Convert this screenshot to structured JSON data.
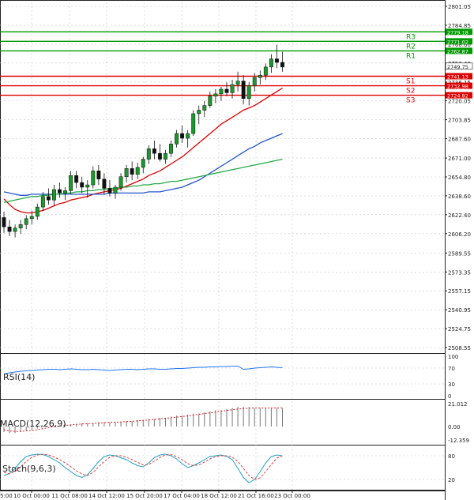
{
  "chart_data": [
    {
      "type": "candlestick",
      "panel": "price",
      "x_tick_labels": [
        "10 Oct 00:00",
        "11 Oct 08:00",
        "14 Oct 12:00",
        "15 Oct 20:00",
        "17 Oct 04:00",
        "18 Oct 12:00",
        "21 Oct 16:00",
        "23 Oct 00:00"
      ],
      "x_tick_labels_partial": [
        "5:00"
      ],
      "y_tick_labels": [
        "2801.05",
        "2784.85",
        "2768.60",
        "2752.40",
        "2736.15",
        "2720.05",
        "2703.85",
        "2687.60",
        "2671.00",
        "2654.80",
        "2638.60",
        "2622.40",
        "2606.20",
        "2589.55",
        "2573.35",
        "2557.15",
        "2540.95",
        "2524.75",
        "2508.55"
      ],
      "ylim": [
        2508.55,
        2801.05
      ],
      "levels": [
        {
          "name": "R3",
          "value": 2779.18,
          "color": "#009900"
        },
        {
          "name": "R2",
          "value": 2771.02,
          "color": "#009900"
        },
        {
          "name": "R1",
          "value": 2762.87,
          "color": "#009900"
        },
        {
          "name": "S1",
          "value": 2741.13,
          "color": "#dd0000"
        },
        {
          "name": "S2",
          "value": 2732.98,
          "color": "#dd0000"
        },
        {
          "name": "S3",
          "value": 2724.82,
          "color": "#dd0000"
        }
      ],
      "level_labels": [
        "2779.18",
        "2771.02",
        "2762.87",
        "2741.13",
        "2732.98",
        "2724.82"
      ],
      "current_price": "2749.75",
      "candles": [
        [
          2620,
          2625,
          2607,
          2612
        ],
        [
          2612,
          2618,
          2604,
          2608
        ],
        [
          2608,
          2614,
          2603,
          2611
        ],
        [
          2611,
          2618,
          2606,
          2614
        ],
        [
          2614,
          2622,
          2610,
          2619
        ],
        [
          2619,
          2626,
          2614,
          2621
        ],
        [
          2621,
          2632,
          2618,
          2629
        ],
        [
          2629,
          2642,
          2626,
          2638
        ],
        [
          2638,
          2645,
          2631,
          2635
        ],
        [
          2635,
          2648,
          2630,
          2644
        ],
        [
          2644,
          2650,
          2637,
          2641
        ],
        [
          2641,
          2646,
          2635,
          2643
        ],
        [
          2643,
          2660,
          2640,
          2656
        ],
        [
          2656,
          2660,
          2645,
          2650
        ],
        [
          2650,
          2655,
          2641,
          2646
        ],
        [
          2646,
          2652,
          2637,
          2648
        ],
        [
          2648,
          2664,
          2645,
          2660
        ],
        [
          2660,
          2665,
          2648,
          2653
        ],
        [
          2653,
          2658,
          2640,
          2645
        ],
        [
          2645,
          2652,
          2638,
          2641
        ],
        [
          2641,
          2648,
          2636,
          2646
        ],
        [
          2646,
          2658,
          2643,
          2655
        ],
        [
          2655,
          2665,
          2650,
          2662
        ],
        [
          2662,
          2668,
          2652,
          2657
        ],
        [
          2657,
          2667,
          2653,
          2663
        ],
        [
          2663,
          2672,
          2658,
          2670
        ],
        [
          2670,
          2682,
          2666,
          2679
        ],
        [
          2679,
          2686,
          2670,
          2675
        ],
        [
          2675,
          2683,
          2668,
          2670
        ],
        [
          2670,
          2678,
          2666,
          2675
        ],
        [
          2675,
          2686,
          2672,
          2683
        ],
        [
          2683,
          2695,
          2680,
          2692
        ],
        [
          2692,
          2699,
          2684,
          2688
        ],
        [
          2688,
          2695,
          2680,
          2692
        ],
        [
          2692,
          2712,
          2690,
          2709
        ],
        [
          2709,
          2716,
          2700,
          2712
        ],
        [
          2712,
          2720,
          2706,
          2716
        ],
        [
          2716,
          2728,
          2714,
          2724
        ],
        [
          2724,
          2730,
          2718,
          2726
        ],
        [
          2726,
          2732,
          2720,
          2730
        ],
        [
          2730,
          2736,
          2724,
          2727
        ],
        [
          2727,
          2738,
          2722,
          2734
        ],
        [
          2734,
          2745,
          2728,
          2737
        ],
        [
          2737,
          2742,
          2717,
          2722
        ],
        [
          2722,
          2736,
          2716,
          2733
        ],
        [
          2733,
          2744,
          2728,
          2740
        ],
        [
          2740,
          2746,
          2734,
          2742
        ],
        [
          2742,
          2752,
          2738,
          2749
        ],
        [
          2749,
          2760,
          2744,
          2756
        ],
        [
          2756,
          2768,
          2748,
          2753
        ],
        [
          2753,
          2762,
          2745,
          2749
        ]
      ],
      "moving_averages": [
        {
          "color": "#e00000",
          "values": [
            2636,
            2631,
            2627,
            2625,
            2624,
            2624,
            2625,
            2626,
            2628,
            2630,
            2632,
            2633,
            2635,
            2636,
            2637,
            2638,
            2640,
            2641,
            2642,
            2643,
            2644,
            2645,
            2647,
            2649,
            2651,
            2653,
            2656,
            2658,
            2660,
            2663,
            2666,
            2669,
            2672,
            2676,
            2680,
            2684,
            2688,
            2692,
            2696,
            2700,
            2703,
            2706,
            2709,
            2712,
            2714,
            2716,
            2719,
            2722,
            2725,
            2728,
            2731
          ]
        },
        {
          "color": "#2255cc",
          "values": [
            2642,
            2641,
            2640,
            2639,
            2639,
            2640,
            2640,
            2640,
            2640,
            2640,
            2640,
            2640,
            2640,
            2640,
            2640,
            2640,
            2640,
            2640,
            2640,
            2641,
            2641,
            2641,
            2641,
            2641,
            2641,
            2641,
            2642,
            2642,
            2642,
            2643,
            2644,
            2645,
            2646,
            2648,
            2650,
            2652,
            2655,
            2658,
            2661,
            2664,
            2667,
            2670,
            2673,
            2676,
            2679,
            2681,
            2684,
            2686,
            2688,
            2690,
            2692
          ]
        },
        {
          "color": "#22aa44",
          "values": [
            2633,
            2634,
            2635,
            2636,
            2637,
            2638,
            2638,
            2639,
            2639,
            2640,
            2640,
            2641,
            2641,
            2642,
            2642,
            2643,
            2643,
            2644,
            2644,
            2645,
            2645,
            2646,
            2646,
            2647,
            2647,
            2648,
            2648,
            2649,
            2649,
            2650,
            2651,
            2651,
            2652,
            2653,
            2654,
            2655,
            2656,
            2657,
            2658,
            2659,
            2660,
            2661,
            2662,
            2663,
            2664,
            2665,
            2666,
            2667,
            2668,
            2669,
            2670
          ]
        }
      ]
    },
    {
      "type": "line",
      "panel": "rsi",
      "title": "RSI(14)",
      "y_tick_labels": [
        "100",
        "70",
        "30",
        "0"
      ],
      "ylim": [
        0,
        100
      ],
      "series": [
        {
          "color": "#1f77ff",
          "values": [
            55,
            58,
            60,
            62,
            63,
            64,
            65,
            66,
            67,
            67,
            66,
            67,
            68,
            67,
            66,
            66,
            67,
            66,
            65,
            64,
            65,
            66,
            67,
            67,
            66,
            67,
            68,
            68,
            67,
            67,
            68,
            69,
            69,
            70,
            71,
            72,
            72,
            73,
            73,
            74,
            74,
            75,
            75,
            67,
            68,
            70,
            71,
            72,
            73,
            72,
            71
          ]
        }
      ]
    },
    {
      "type": "bar",
      "panel": "macd",
      "title": "MACD(12,26,9)",
      "y_tick_labels": [
        "21.012",
        "0.00",
        "-12.359"
      ],
      "ylim": [
        -12.359,
        21.012
      ],
      "histogram": [
        -5,
        -6,
        -6,
        -5,
        -4,
        -3,
        -2,
        -1,
        0,
        1,
        1,
        2,
        2,
        2,
        3,
        3,
        3,
        4,
        4,
        4,
        4,
        4,
        5,
        5,
        6,
        6,
        7,
        7,
        8,
        8,
        9,
        10,
        10,
        11,
        12,
        12,
        13,
        14,
        15,
        15,
        16,
        17,
        18,
        18,
        18,
        17,
        17,
        17,
        17,
        17,
        17
      ],
      "signal": [
        -3,
        -4,
        -4.5,
        -4.5,
        -4,
        -3.5,
        -3,
        -2,
        -1,
        0,
        0.5,
        1,
        1.5,
        2,
        2.3,
        2.6,
        2.9,
        3.2,
        3.5,
        3.8,
        4,
        4.2,
        4.5,
        4.8,
        5.2,
        5.6,
        6,
        6.5,
        7,
        7.5,
        8,
        8.6,
        9.2,
        9.8,
        10.5,
        11.2,
        11.9,
        12.6,
        13.3,
        14,
        14.7,
        15.4,
        16,
        16.5,
        16.8,
        17,
        17,
        17,
        17,
        17,
        17
      ]
    },
    {
      "type": "line",
      "panel": "stoch",
      "title": "Stoch(9,6,3)",
      "y_tick_labels": [
        "80",
        "20"
      ],
      "ylim": [
        0,
        100
      ],
      "series": [
        {
          "color": "#1fa0c8",
          "values": [
            30,
            35,
            48,
            65,
            78,
            82,
            84,
            83,
            78,
            70,
            62,
            50,
            40,
            30,
            25,
            32,
            48,
            65,
            78,
            82,
            80,
            75,
            70,
            62,
            55,
            52,
            62,
            75,
            82,
            84,
            80,
            72,
            60,
            50,
            55,
            62,
            70,
            78,
            80,
            82,
            78,
            70,
            48,
            25,
            12,
            20,
            40,
            62,
            78,
            82,
            80
          ]
        },
        {
          "color": "#e04040",
          "values": [
            38,
            34,
            40,
            52,
            66,
            76,
            82,
            84,
            82,
            77,
            70,
            62,
            52,
            42,
            34,
            30,
            38,
            52,
            66,
            76,
            80,
            80,
            76,
            70,
            63,
            57,
            58,
            66,
            76,
            82,
            83,
            78,
            70,
            60,
            55,
            57,
            64,
            72,
            78,
            80,
            80,
            76,
            66,
            48,
            30,
            20,
            24,
            40,
            58,
            74,
            80
          ]
        }
      ]
    }
  ]
}
